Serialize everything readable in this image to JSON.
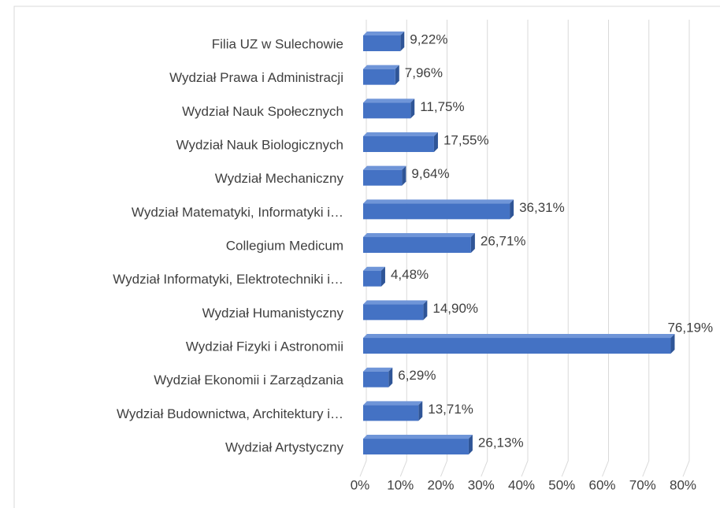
{
  "chart_data": {
    "type": "bar",
    "orientation": "horizontal",
    "color": "#4472c4",
    "categories": [
      "Filia UZ w Sulechowie",
      "Wydział Prawa i Administracji",
      "Wydział Nauk Społecznych",
      "Wydział Nauk Biologicznych",
      "Wydział Mechaniczny",
      "Wydział Matematyki, Informatyki i…",
      "Collegium Medicum",
      "Wydział Informatyki, Elektrotechniki i…",
      "Wydział Humanistyczny",
      "Wydział Fizyki i Astronomii",
      "Wydział Ekonomii i Zarządzania",
      "Wydział Budownictwa, Architektury i…",
      "Wydział Artystyczny"
    ],
    "values": [
      9.22,
      7.96,
      11.75,
      17.55,
      9.64,
      36.31,
      26.71,
      4.48,
      14.9,
      76.19,
      6.29,
      13.71,
      26.13
    ],
    "value_labels": [
      "9,22%",
      "7,96%",
      "11,75%",
      "17,55%",
      "9,64%",
      "36,31%",
      "26,71%",
      "4,48%",
      "14,90%",
      "76,19%",
      "6,29%",
      "13,71%",
      "26,13%"
    ],
    "xlim": [
      0,
      80
    ],
    "xticks": [
      {
        "value": 0,
        "label": "0%"
      },
      {
        "value": 10,
        "label": "10%"
      },
      {
        "value": 20,
        "label": "20%"
      },
      {
        "value": 30,
        "label": "30%"
      },
      {
        "value": 40,
        "label": "40%"
      },
      {
        "value": 50,
        "label": "50%"
      },
      {
        "value": 60,
        "label": "60%"
      },
      {
        "value": 70,
        "label": "70%"
      },
      {
        "value": 80,
        "label": "80%"
      }
    ],
    "grid": true
  }
}
